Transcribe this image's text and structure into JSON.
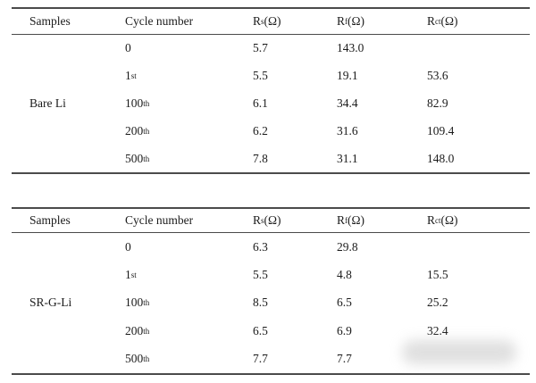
{
  "columns": [
    {
      "label": "Samples"
    },
    {
      "label": "Cycle number"
    },
    {
      "pre": "R",
      "sub": "s",
      "post": " (Ω)"
    },
    {
      "pre": "R",
      "sub": "f",
      "post": "(Ω)"
    },
    {
      "pre": "R",
      "sub": "ct",
      "post": " (Ω)"
    }
  ],
  "tables": [
    {
      "sample": "Bare Li",
      "rows": [
        {
          "cycle": "0",
          "ordinal": "",
          "rs": "5.7",
          "rf": "143.0",
          "rct": ""
        },
        {
          "cycle": "1",
          "ordinal": "st",
          "rs": "5.5",
          "rf": "19.1",
          "rct": "53.6"
        },
        {
          "cycle": "100",
          "ordinal": "th",
          "rs": "6.1",
          "rf": "34.4",
          "rct": "82.9"
        },
        {
          "cycle": "200",
          "ordinal": "th",
          "rs": "6.2",
          "rf": "31.6",
          "rct": "109.4"
        },
        {
          "cycle": "500",
          "ordinal": "th",
          "rs": "7.8",
          "rf": "31.1",
          "rct": "148.0"
        }
      ]
    },
    {
      "sample": "SR-G-Li",
      "rows": [
        {
          "cycle": "0",
          "ordinal": "",
          "rs": "6.3",
          "rf": "29.8",
          "rct": ""
        },
        {
          "cycle": "1",
          "ordinal": "st",
          "rs": "5.5",
          "rf": "4.8",
          "rct": "15.5"
        },
        {
          "cycle": "100",
          "ordinal": "th",
          "rs": "8.5",
          "rf": "6.5",
          "rct": "25.2"
        },
        {
          "cycle": "200",
          "ordinal": "th",
          "rs": "6.5",
          "rf": "6.9",
          "rct": "32.4"
        },
        {
          "cycle": "500",
          "ordinal": "th",
          "rs": "7.7",
          "rf": "7.7",
          "rct": ""
        }
      ]
    }
  ],
  "chart_data": {
    "type": "table",
    "title": "EIS fitting results (Rs, Rf, Rct in Ω) vs cycle number for Bare Li and SR-G-Li",
    "categories": [
      "0",
      "1st",
      "100th",
      "200th",
      "500th"
    ],
    "series": [
      {
        "name": "Bare Li Rs",
        "values": [
          5.7,
          5.5,
          6.1,
          6.2,
          7.8
        ]
      },
      {
        "name": "Bare Li Rf",
        "values": [
          143.0,
          19.1,
          34.4,
          31.6,
          31.1
        ]
      },
      {
        "name": "Bare Li Rct",
        "values": [
          null,
          53.6,
          82.9,
          109.4,
          148.0
        ]
      },
      {
        "name": "SR-G-Li Rs",
        "values": [
          6.3,
          5.5,
          8.5,
          6.5,
          7.7
        ]
      },
      {
        "name": "SR-G-Li Rf",
        "values": [
          29.8,
          4.8,
          6.5,
          6.9,
          7.7
        ]
      },
      {
        "name": "SR-G-Li Rct",
        "values": [
          null,
          15.5,
          25.2,
          32.4,
          null
        ]
      }
    ]
  }
}
